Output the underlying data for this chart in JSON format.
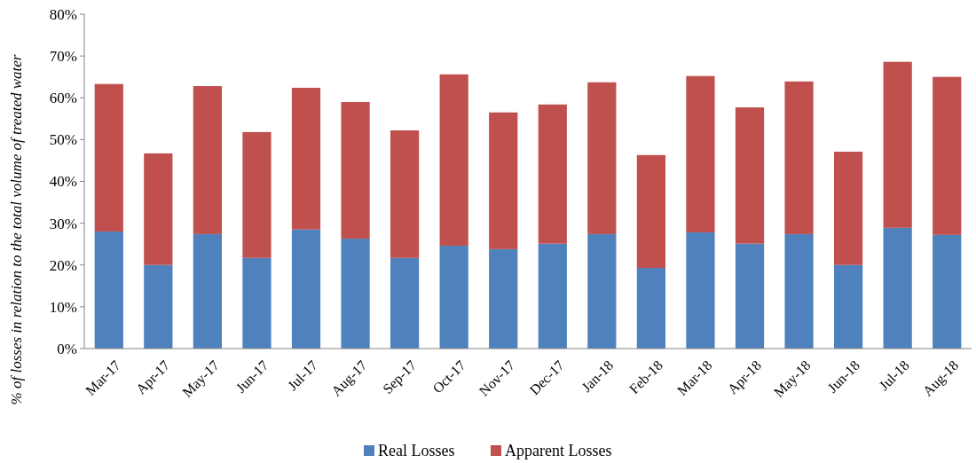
{
  "chart_data": {
    "type": "bar",
    "stacked": true,
    "ylabel": "% of losses in relation to the total volume of treated water",
    "categories": [
      "Mar-17",
      "Apr-17",
      "May-17",
      "Jun-17",
      "Jul-17",
      "Aug-17",
      "Sep-17",
      "Oct-17",
      "Nov-17",
      "Dec-17",
      "Jan-18",
      "Feb-18",
      "Mar-18",
      "Apr-18",
      "May-18",
      "Jun-18",
      "Jul-18",
      "Aug-18"
    ],
    "series": [
      {
        "name": "Real Losses",
        "color": "#4f81bd",
        "values": [
          28.0,
          20.0,
          27.4,
          21.7,
          28.5,
          26.3,
          21.7,
          24.6,
          23.8,
          25.1,
          27.4,
          19.3,
          27.8,
          25.1,
          27.4,
          20.0,
          28.9,
          27.2
        ]
      },
      {
        "name": "Apparent Losses",
        "color": "#c0504d",
        "values": [
          35.3,
          26.7,
          35.4,
          30.1,
          33.9,
          32.7,
          30.5,
          41.0,
          32.7,
          33.3,
          36.3,
          27.0,
          37.4,
          32.6,
          36.5,
          27.1,
          39.7,
          37.8
        ]
      }
    ],
    "ylim": [
      0,
      80
    ],
    "yticks": [
      {
        "value": 0,
        "label": "0%"
      },
      {
        "value": 10,
        "label": "10%"
      },
      {
        "value": 20,
        "label": "20%"
      },
      {
        "value": 30,
        "label": "30%"
      },
      {
        "value": 40,
        "label": "40%"
      },
      {
        "value": 50,
        "label": "50%"
      },
      {
        "value": 60,
        "label": "60%"
      },
      {
        "value": 70,
        "label": "70%"
      },
      {
        "value": 80,
        "label": "80%"
      }
    ],
    "legend": "bottom"
  }
}
